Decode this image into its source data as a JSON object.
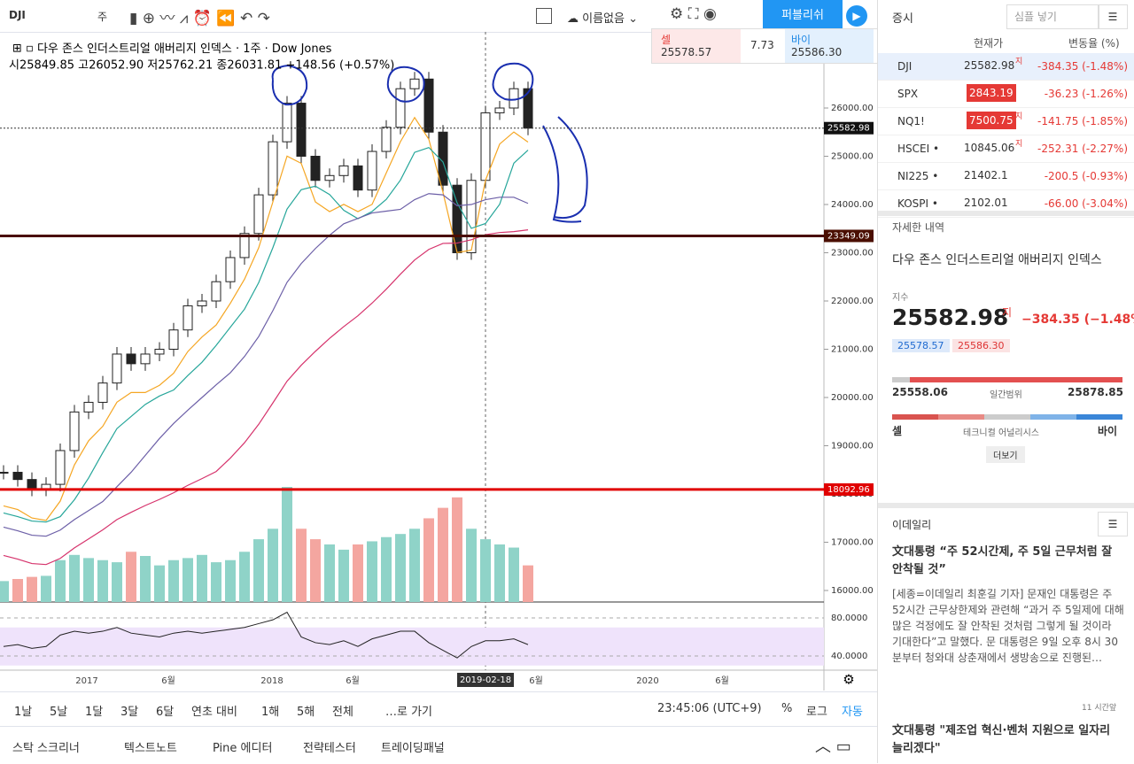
{
  "toolbar": {
    "symbol": "DJI",
    "interval": "주",
    "layout_name": "이름없음",
    "publish": "퍼블리쉬"
  },
  "quote_box": {
    "sell_label": "셀",
    "sell": "25578.57",
    "spread": "7.73",
    "buy_label": "바이",
    "buy": "25586.30"
  },
  "chart_header": {
    "title": "다우 존스 인더스트리얼 애버리지 인덱스 · 1주 · Dow Jones",
    "ohlc": "시25849.85 고26052.90 저25762.21 종26031.81 +148.56 (+0.57%)"
  },
  "chart_data": {
    "type": "candlestick",
    "values": [
      18450,
      18300,
      18100,
      18200,
      18900,
      19700,
      19900,
      20300,
      20900,
      20700,
      20900,
      21000,
      21400,
      21900,
      22000,
      22400,
      22900,
      23400,
      24200,
      25300,
      26100,
      25000,
      24500,
      24600,
      24800,
      24300,
      25100,
      25600,
      26400,
      26600,
      25500,
      24400,
      23000,
      24500,
      25900,
      26000,
      26400,
      25583
    ],
    "volume": [
      20,
      22,
      24,
      25,
      40,
      45,
      42,
      40,
      38,
      48,
      44,
      35,
      40,
      42,
      45,
      38,
      40,
      48,
      60,
      70,
      110,
      70,
      60,
      55,
      50,
      55,
      58,
      62,
      65,
      70,
      80,
      90,
      100,
      70,
      60,
      55,
      52,
      35
    ],
    "ylim": [
      15700,
      27000
    ],
    "yticks": [
      {
        "value": 26000,
        "label": "26000.00"
      },
      {
        "value": 25000,
        "label": "25000.00"
      },
      {
        "value": 24000,
        "label": "24000.00"
      },
      {
        "value": 23000,
        "label": "23000.00"
      },
      {
        "value": 22000,
        "label": "22000.00"
      },
      {
        "value": 21000,
        "label": "21000.00"
      },
      {
        "value": 20000,
        "label": "20000.00"
      },
      {
        "value": 19000,
        "label": "19000.00"
      },
      {
        "value": 18000,
        "label": "18000.00"
      },
      {
        "value": 17000,
        "label": "17000.00"
      },
      {
        "value": 16000,
        "label": "16000.00"
      }
    ],
    "last_price": {
      "value": 25582.98,
      "label": "25582.98"
    },
    "levels": [
      {
        "value": 23349.09,
        "label": "23349.09",
        "color": "#4a0e00"
      },
      {
        "value": 18092.96,
        "label": "18092.96",
        "color": "#e00000"
      }
    ],
    "time_labels": [
      "2017",
      "6월",
      "2018",
      "6월",
      "6월",
      "2020",
      "6월"
    ],
    "cursor_date": "2019-02-18",
    "rsi": {
      "values": [
        50,
        52,
        48,
        50,
        62,
        66,
        64,
        66,
        70,
        64,
        62,
        60,
        64,
        66,
        64,
        66,
        68,
        70,
        74,
        78,
        86,
        60,
        54,
        52,
        56,
        50,
        58,
        62,
        66,
        66,
        54,
        46,
        38,
        50,
        56,
        56,
        58,
        52
      ],
      "ylim": [
        35,
        85
      ],
      "yticks": [
        {
          "value": 80,
          "label": "80.0000"
        },
        {
          "value": 40,
          "label": "40.0000"
        }
      ]
    }
  },
  "watchlist": {
    "title": "증시",
    "search": "심플 넣기",
    "columns": [
      "현재가",
      "변동율 (%)"
    ],
    "rows": [
      [
        "DJI",
        "25582.98",
        "지",
        "-384.35 (-1.48%)"
      ],
      [
        "SPX",
        "2843.19",
        "",
        "-36.23 (-1.26%)"
      ],
      [
        "NQ1!",
        "7500.75",
        "지",
        "-141.75 (-1.85%)"
      ],
      [
        "HSCEI •",
        "10845.06",
        "지",
        "-252.31 (-2.27%)"
      ],
      [
        "NI225 •",
        "21402.1",
        "",
        "-200.5 (-0.93%)"
      ],
      [
        "KOSPI •",
        "2102.01",
        "",
        "-66.00 (-3.04%)"
      ]
    ]
  },
  "details": {
    "title": "자세한 내역",
    "name": "다우 존스 인더스트리얼 애버리지 인덱스",
    "kind": "지수",
    "price": "25582.98",
    "tag": "지",
    "change": "−384.35 (−1.48%)",
    "bid": "25578.57",
    "ask": "25586.30",
    "low": "25558.06",
    "range_label": "일간범위",
    "high": "25878.85",
    "sell": "셀",
    "tech": "테크니컬 어널리시스",
    "buy": "바이",
    "more": "더보기"
  },
  "news": {
    "source": "이데일리",
    "items": [
      {
        "headline": "文대통령 “주 52시간제, 주 5일 근무처럼 잘 안착될 것”",
        "body": "[세종=이데일리 최훈길 기자] 문재인 대통령은 주 52시간 근무상한제와 관련해 “과거 주 5일제에 대해 많은 걱정에도 잘 안착된 것처럼 그렇게 될 것이라 기대한다”고 말했다. 문 대통령은 9일 오후 8시 30분부터 청와대 상춘재에서 생방송으로 진행된…",
        "time": "11 시간앞"
      },
      {
        "headline": "文대통령 \"제조업 혁신·벤처 지원으로 일자리 늘리겠다\""
      }
    ]
  },
  "bottom_bar": {
    "ranges": [
      "1날",
      "5날",
      "1달",
      "3달",
      "6달",
      "연초 대비",
      "1해",
      "5해",
      "전체",
      "…로 가기"
    ],
    "clock": "23:45:06 (UTC+9)",
    "options": [
      "%",
      "로그",
      "자동"
    ]
  },
  "tabs": [
    "스탁 스크리너",
    "텍스트노트",
    "Pine 에디터",
    "전략테스터",
    "트레이딩패널"
  ]
}
